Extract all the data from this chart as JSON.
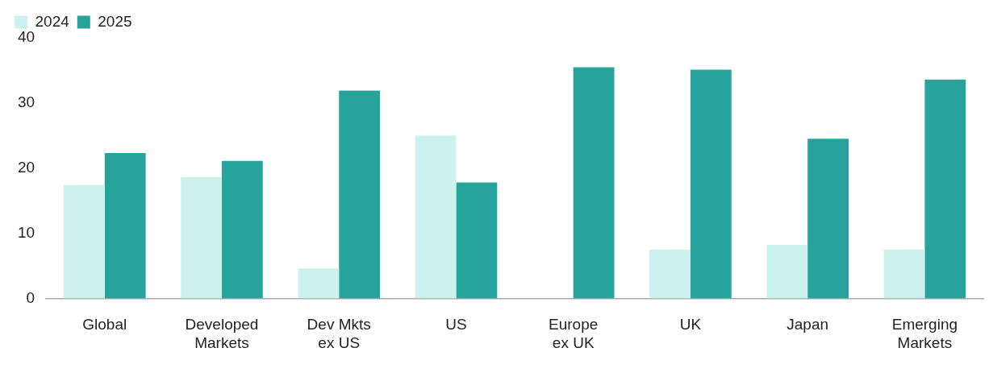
{
  "chart_data": {
    "type": "bar",
    "categories": [
      "Global",
      "Developed Markets",
      "Dev Mkts ex US",
      "US",
      "Europe ex UK",
      "UK",
      "Japan",
      "Emerging Markets"
    ],
    "series": [
      {
        "name": "2024",
        "color": "#cdf1ee",
        "values": [
          17.4,
          18.6,
          4.6,
          25.0,
          null,
          7.5,
          8.2,
          7.5
        ]
      },
      {
        "name": "2025",
        "color": "#26a39a",
        "values": [
          22.3,
          21.1,
          31.9,
          17.8,
          35.5,
          35.1,
          24.5,
          33.6
        ]
      }
    ],
    "ylim": [
      0,
      40
    ],
    "yticks": [
      0,
      10,
      20,
      30,
      40
    ],
    "grid": false,
    "legend": "top left"
  }
}
